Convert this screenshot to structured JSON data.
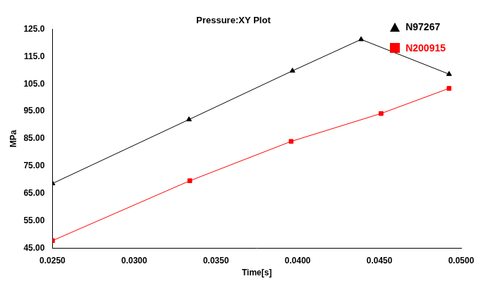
{
  "chart_data": {
    "type": "line",
    "title": "Pressure:XY Plot",
    "x_label": "Time[s]",
    "y_label": "MPa",
    "series": [
      {
        "name": "N97267",
        "color": "#000000",
        "marker": "triangle",
        "x": [
          0.025,
          0.03335,
          0.03968,
          0.04388,
          0.04926
        ],
        "values": [
          68.6,
          92.0,
          109.8,
          121.3,
          108.6
        ]
      },
      {
        "name": "N200915",
        "color": "#ff0000",
        "marker": "square",
        "x": [
          0.025,
          0.0334,
          0.0396,
          0.0451,
          0.04926
        ],
        "values": [
          47.7,
          69.6,
          84.0,
          94.2,
          103.4
        ]
      }
    ],
    "xlim": [
      0.025,
      0.05
    ],
    "xticks": [
      {
        "value": 0.025,
        "label": "0.0250"
      },
      {
        "value": 0.03,
        "label": "0.0300"
      },
      {
        "value": 0.035,
        "label": "0.0350"
      },
      {
        "value": 0.04,
        "label": "0.0400"
      },
      {
        "value": 0.045,
        "label": "0.0450"
      },
      {
        "value": 0.05,
        "label": "0.0500"
      }
    ],
    "ylim": [
      45,
      125
    ],
    "yticks": [
      {
        "value": 45,
        "label": "45.00"
      },
      {
        "value": 55,
        "label": "55.00"
      },
      {
        "value": 65,
        "label": "65.00"
      },
      {
        "value": 75,
        "label": "75.00"
      },
      {
        "value": 85,
        "label": "85.00"
      },
      {
        "value": 95,
        "label": "95.00"
      },
      {
        "value": 105,
        "label": "105.0"
      },
      {
        "value": 115,
        "label": "115.0"
      },
      {
        "value": 125,
        "label": "125.0"
      }
    ],
    "grid": false,
    "legend": "top-right"
  }
}
